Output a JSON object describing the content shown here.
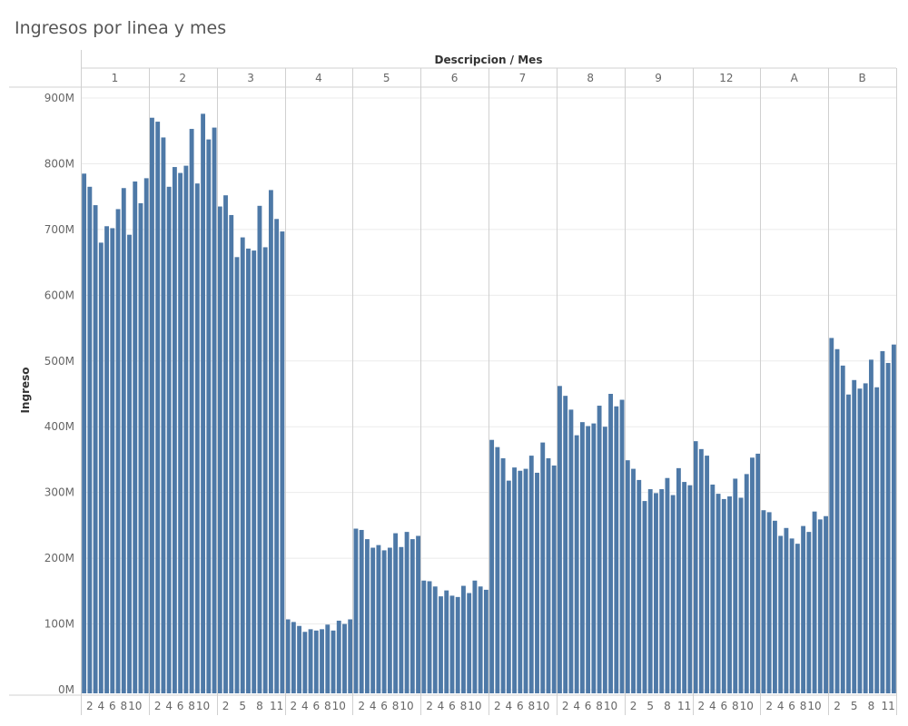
{
  "title": "Ingresos por linea y mes",
  "chart_data": {
    "type": "bar",
    "title": "Ingresos por linea y mes",
    "column_header": "Descripcion / Mes",
    "ylabel": "Ingreso",
    "ylim": [
      0,
      900000000
    ],
    "y_ticks": [
      "0M",
      "100M",
      "200M",
      "300M",
      "400M",
      "500M",
      "600M",
      "700M",
      "800M",
      "900M"
    ],
    "y_tick_values": [
      0,
      100000000,
      200000000,
      300000000,
      400000000,
      500000000,
      600000000,
      700000000,
      800000000,
      900000000
    ],
    "grid": true,
    "bar_color": "#4e79a7",
    "groups": [
      {
        "name": "1",
        "month_labels": [
          "2",
          "4",
          "6",
          "8",
          "10"
        ],
        "months": [
          1,
          2,
          3,
          4,
          5,
          6,
          7,
          8,
          9,
          10,
          11,
          12
        ],
        "values": [
          785,
          765,
          737,
          680,
          705,
          702,
          731,
          763,
          692,
          773,
          740,
          778
        ]
      },
      {
        "name": "2",
        "month_labels": [
          "2",
          "4",
          "6",
          "8",
          "10"
        ],
        "months": [
          1,
          2,
          3,
          4,
          5,
          6,
          7,
          8,
          9,
          10,
          11,
          12
        ],
        "values": [
          870,
          864,
          840,
          765,
          795,
          786,
          797,
          853,
          770,
          876,
          837,
          855
        ]
      },
      {
        "name": "3",
        "month_labels": [
          "2",
          "5",
          "8",
          "11"
        ],
        "months": [
          1,
          2,
          3,
          4,
          5,
          6,
          7,
          8,
          9,
          10,
          11,
          12
        ],
        "values": [
          735,
          752,
          722,
          658,
          688,
          671,
          668,
          736,
          673,
          760,
          716,
          697
        ]
      },
      {
        "name": "4",
        "month_labels": [
          "2",
          "4",
          "6",
          "8",
          "10"
        ],
        "months": [
          1,
          2,
          3,
          4,
          5,
          6,
          7,
          8,
          9,
          10,
          11,
          12
        ],
        "values": [
          107,
          103,
          97,
          88,
          92,
          90,
          92,
          99,
          90,
          105,
          100,
          107
        ]
      },
      {
        "name": "5",
        "month_labels": [
          "2",
          "4",
          "6",
          "8",
          "10"
        ],
        "months": [
          1,
          2,
          3,
          4,
          5,
          6,
          7,
          8,
          9,
          10,
          11,
          12
        ],
        "values": [
          245,
          243,
          229,
          216,
          220,
          212,
          216,
          238,
          217,
          240,
          229,
          234
        ]
      },
      {
        "name": "6",
        "month_labels": [
          "2",
          "4",
          "6",
          "8",
          "10"
        ],
        "months": [
          1,
          2,
          3,
          4,
          5,
          6,
          7,
          8,
          9,
          10,
          11,
          12
        ],
        "values": [
          166,
          165,
          157,
          142,
          151,
          143,
          141,
          158,
          147,
          166,
          157,
          152
        ]
      },
      {
        "name": "7",
        "month_labels": [
          "2",
          "4",
          "6",
          "8",
          "10"
        ],
        "months": [
          1,
          2,
          3,
          4,
          5,
          6,
          7,
          8,
          9,
          10,
          11,
          12
        ],
        "values": [
          380,
          369,
          352,
          318,
          338,
          333,
          336,
          356,
          330,
          376,
          352,
          341
        ]
      },
      {
        "name": "8",
        "month_labels": [
          "2",
          "4",
          "6",
          "8",
          "10"
        ],
        "months": [
          1,
          2,
          3,
          4,
          5,
          6,
          7,
          8,
          9,
          10,
          11,
          12
        ],
        "values": [
          462,
          447,
          426,
          387,
          407,
          401,
          405,
          432,
          400,
          450,
          431,
          441
        ]
      },
      {
        "name": "9",
        "month_labels": [
          "2",
          "5",
          "8",
          "11"
        ],
        "months": [
          1,
          2,
          3,
          4,
          5,
          6,
          7,
          8,
          9,
          10,
          11,
          12
        ],
        "values": [
          349,
          336,
          319,
          287,
          305,
          299,
          305,
          322,
          296,
          337,
          316,
          311
        ]
      },
      {
        "name": "12",
        "month_labels": [
          "2",
          "4",
          "6",
          "8",
          "10"
        ],
        "months": [
          1,
          2,
          3,
          4,
          5,
          6,
          7,
          8,
          9,
          10,
          11,
          12
        ],
        "values": [
          378,
          366,
          356,
          312,
          298,
          290,
          294,
          321,
          292,
          328,
          353,
          359
        ]
      },
      {
        "name": "A",
        "month_labels": [
          "2",
          "4",
          "6",
          "8",
          "10"
        ],
        "months": [
          1,
          2,
          3,
          4,
          5,
          6,
          7,
          8,
          9,
          10,
          11,
          12
        ],
        "values": [
          273,
          270,
          257,
          234,
          246,
          230,
          222,
          249,
          240,
          271,
          259,
          264
        ]
      },
      {
        "name": "B",
        "month_labels": [
          "2",
          "5",
          "8",
          "11"
        ],
        "months": [
          1,
          2,
          3,
          4,
          5,
          6,
          7,
          8,
          9,
          10,
          11,
          12
        ],
        "values": [
          535,
          518,
          493,
          449,
          471,
          458,
          466,
          502,
          460,
          515,
          497,
          525
        ]
      }
    ],
    "value_unit_note": "values in millions"
  }
}
